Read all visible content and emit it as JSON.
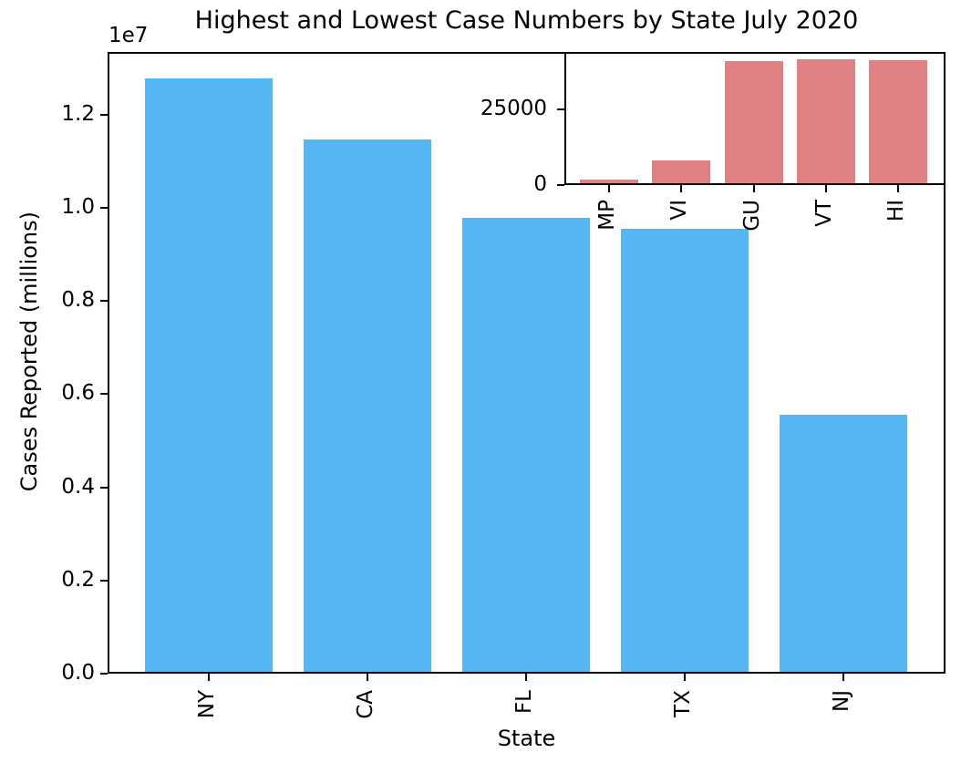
{
  "title": "Highest and Lowest Case Numbers by State July 2020",
  "chart_data": [
    {
      "type": "bar",
      "name": "main-highest-states",
      "title": "Highest and Lowest Case Numbers by State July 2020",
      "xlabel": "State",
      "ylabel": "Cases Reported (millions)",
      "y_offset_label": "1e7",
      "categories": [
        "NY",
        "CA",
        "FL",
        "TX",
        "NJ"
      ],
      "values": [
        12780000,
        11470000,
        9780000,
        9550000,
        5550000
      ],
      "bar_color": "#55b6f2",
      "ylim": [
        0,
        13350000
      ],
      "ytick_labels": [
        "0.0",
        "0.2",
        "0.4",
        "0.6",
        "0.8",
        "1.0",
        "1.2"
      ],
      "ytick_values": [
        0,
        2000000,
        4000000,
        6000000,
        8000000,
        10000000,
        12000000
      ],
      "grid": false,
      "legend": "none"
    },
    {
      "type": "bar",
      "name": "inset-lowest-states",
      "categories": [
        "MP",
        "VI",
        "GU",
        "VT",
        "HI"
      ],
      "values": [
        1800,
        8000,
        41000,
        41700,
        41400
      ],
      "bar_color": "#e08184",
      "ylim": [
        0,
        44000
      ],
      "ytick_labels": [
        "0",
        "25000"
      ],
      "ytick_values": [
        0,
        25000
      ],
      "grid": false,
      "legend": "none",
      "position": "upper-right-inset"
    }
  ]
}
